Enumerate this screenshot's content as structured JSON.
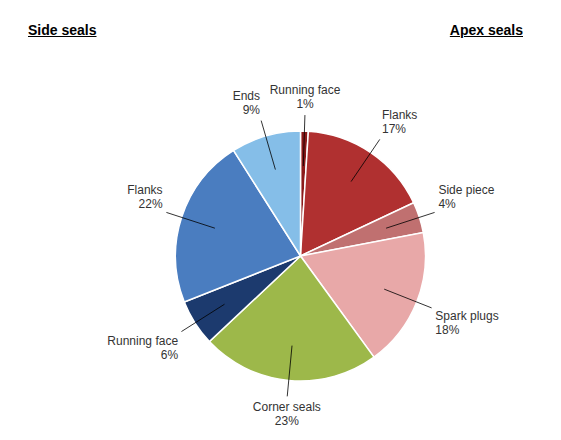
{
  "chart_data": {
    "type": "pie",
    "categories": [
      "Running face",
      "Flanks",
      "Side piece",
      "Spark plugs",
      "Corner seals",
      "Running face",
      "Flanks",
      "Ends"
    ],
    "values": [
      1,
      17,
      4,
      18,
      23,
      6,
      22,
      9
    ],
    "value_labels": [
      "1%",
      "17%",
      "4%",
      "18%",
      "23%",
      "6%",
      "22%",
      "9%"
    ],
    "colors": [
      "#8B1A1A",
      "#B03030",
      "#C07070",
      "#E8A8A8",
      "#9DB84A",
      "#1C3A6E",
      "#4A7DC0",
      "#85BEE8"
    ],
    "annotations": [
      "Apex seals",
      "Side seals"
    ]
  }
}
